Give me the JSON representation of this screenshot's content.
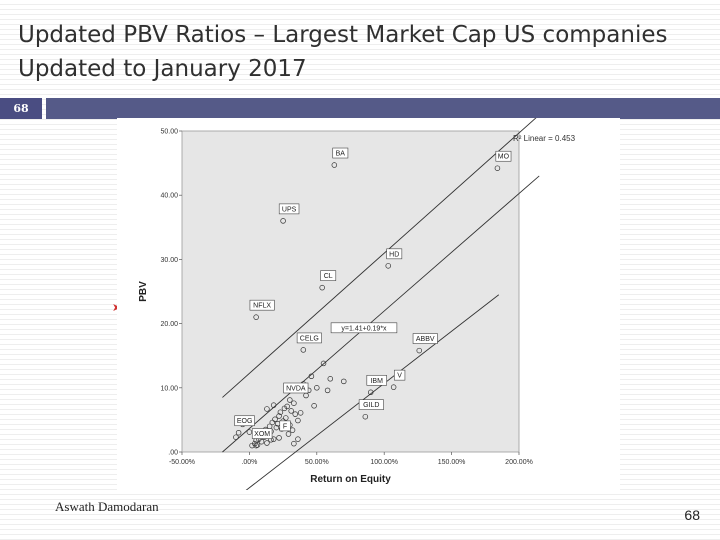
{
  "slide": {
    "title_line1": "Updated PBV Ratios – Largest Market Cap US companies",
    "title_line2": "Updated to January 2017",
    "slide_badge": "68",
    "author": "Aswath Damodaran",
    "page_number": "68"
  },
  "colors": {
    "bar_accent": "#4a4d82",
    "plot_background": "#e6e6e6",
    "bullet_arrow": "#d0302f"
  },
  "chart_data": {
    "type": "scatter",
    "xlabel": "Return on Equity",
    "ylabel": "PBV",
    "xlim": [
      -0.5,
      2.0
    ],
    "ylim": [
      0,
      50
    ],
    "x_ticks": [
      {
        "v": -0.5,
        "label": "-50.00%"
      },
      {
        "v": 0.0,
        "label": ".00%"
      },
      {
        "v": 0.5,
        "label": "50.00%"
      },
      {
        "v": 1.0,
        "label": "100.00%"
      },
      {
        "v": 1.5,
        "label": "150.00%"
      },
      {
        "v": 2.0,
        "label": "200.00%"
      }
    ],
    "y_ticks": [
      {
        "v": 0,
        "label": ".00"
      },
      {
        "v": 10,
        "label": "10.00"
      },
      {
        "v": 20,
        "label": "20.00"
      },
      {
        "v": 30,
        "label": "30.00"
      },
      {
        "v": 40,
        "label": "40.00"
      },
      {
        "v": 50,
        "label": "50.00"
      }
    ],
    "r2_text": "R² Linear = 0.453",
    "fit": {
      "equation": "y=1.41+0.19*x",
      "line": [
        [
          -0.2,
          0.0
        ],
        [
          2.15,
          43.0
        ]
      ],
      "band_upper": [
        [
          -0.2,
          8.5
        ],
        [
          2.15,
          52.5
        ]
      ],
      "band_lower": [
        [
          -0.15,
          -8.0
        ],
        [
          1.85,
          24.5
        ]
      ]
    },
    "labeled_points": [
      {
        "label": "BA",
        "x": 0.63,
        "y": 44.7
      },
      {
        "label": "MO",
        "x": 1.84,
        "y": 44.2
      },
      {
        "label": "UPS",
        "x": 0.25,
        "y": 36.0
      },
      {
        "label": "HD",
        "x": 1.03,
        "y": 29.0
      },
      {
        "label": "CL",
        "x": 0.54,
        "y": 25.6
      },
      {
        "label": "NFLX",
        "x": 0.05,
        "y": 21.0
      },
      {
        "label": "CELG",
        "x": 0.4,
        "y": 15.9
      },
      {
        "label": "IBM",
        "x": 0.9,
        "y": 9.3
      },
      {
        "label": "V",
        "x": 1.07,
        "y": 10.1
      },
      {
        "label": "ABBV",
        "x": 1.26,
        "y": 15.8
      },
      {
        "label": "NVDA",
        "x": 0.3,
        "y": 8.1
      },
      {
        "label": "GILD",
        "x": 0.86,
        "y": 5.5
      },
      {
        "label": "EOG",
        "x": -0.08,
        "y": 3.0
      },
      {
        "label": "XOM",
        "x": 0.05,
        "y": 1.0
      },
      {
        "label": "F",
        "x": 0.22,
        "y": 2.2
      }
    ],
    "points": [
      [
        0.02,
        1.0
      ],
      [
        0.04,
        1.3
      ],
      [
        0.05,
        1.8
      ],
      [
        0.06,
        1.1
      ],
      [
        0.07,
        2.0
      ],
      [
        0.08,
        2.6
      ],
      [
        0.09,
        1.6
      ],
      [
        0.1,
        3.0
      ],
      [
        0.11,
        2.3
      ],
      [
        0.12,
        3.5
      ],
      [
        0.13,
        1.4
      ],
      [
        0.14,
        2.7
      ],
      [
        0.15,
        4.0
      ],
      [
        0.16,
        3.2
      ],
      [
        0.17,
        4.6
      ],
      [
        0.18,
        2.0
      ],
      [
        0.19,
        5.1
      ],
      [
        0.2,
        3.8
      ],
      [
        0.21,
        4.4
      ],
      [
        0.22,
        5.6
      ],
      [
        0.23,
        6.2
      ],
      [
        0.24,
        3.6
      ],
      [
        0.25,
        4.8
      ],
      [
        0.26,
        6.8
      ],
      [
        0.27,
        5.3
      ],
      [
        0.28,
        7.1
      ],
      [
        0.29,
        2.8
      ],
      [
        0.3,
        4.2
      ],
      [
        0.31,
        6.4
      ],
      [
        0.32,
        3.4
      ],
      [
        0.33,
        7.6
      ],
      [
        0.34,
        5.9
      ],
      [
        0.36,
        4.9
      ],
      [
        0.38,
        6.1
      ],
      [
        0.4,
        10.6
      ],
      [
        0.42,
        8.8
      ],
      [
        0.44,
        9.6
      ],
      [
        0.46,
        11.8
      ],
      [
        0.48,
        7.2
      ],
      [
        0.5,
        10.0
      ],
      [
        -0.1,
        2.3
      ],
      [
        -0.05,
        4.3
      ],
      [
        0.0,
        3.1
      ],
      [
        0.13,
        6.7
      ],
      [
        0.16,
        1.9
      ],
      [
        0.18,
        7.3
      ],
      [
        0.33,
        1.3
      ],
      [
        0.36,
        2.0
      ],
      [
        0.6,
        11.4
      ],
      [
        0.7,
        11.0
      ],
      [
        0.55,
        13.8
      ],
      [
        0.58,
        9.6
      ]
    ]
  }
}
